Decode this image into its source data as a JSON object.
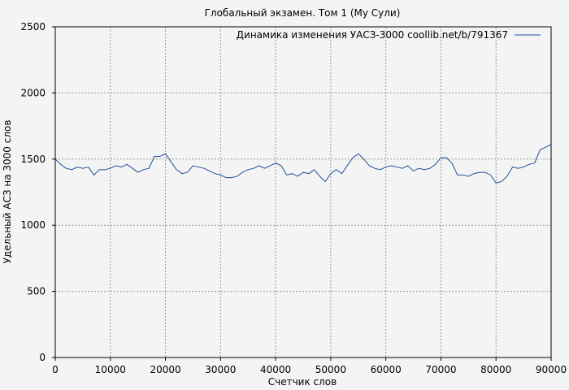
{
  "chart_data": {
    "type": "line",
    "title": "Глобальный экзамен. Том 1 (Му Сули)",
    "xlabel": "Счетчик слов",
    "ylabel": "Удельный АСЗ на 3000 слов",
    "xlim": [
      0,
      90000
    ],
    "ylim": [
      0,
      2500
    ],
    "xticks": [
      0,
      10000,
      20000,
      30000,
      40000,
      50000,
      60000,
      70000,
      80000,
      90000
    ],
    "xtick_labels": [
      "0",
      "10000",
      "20000",
      "30000",
      "40000",
      "50000",
      "60000",
      "70000",
      "80000",
      "90000"
    ],
    "yticks": [
      0,
      500,
      1000,
      1500,
      2000,
      2500
    ],
    "ytick_labels": [
      "0",
      "500",
      "1000",
      "1500",
      "2000",
      "2500"
    ],
    "grid": true,
    "legend_position": "top-right",
    "colors": {
      "line": "#1f4e96",
      "grid": "#999999",
      "background": "#f4f4f4"
    },
    "series": [
      {
        "name": "Динамика изменения УАСЗ-3000 coollib.net/b/791367",
        "x": [
          0,
          1000,
          2000,
          3000,
          4000,
          5000,
          6000,
          7000,
          8000,
          9000,
          10000,
          11000,
          12000,
          13000,
          14000,
          15000,
          16000,
          17000,
          18000,
          19000,
          20000,
          21000,
          22000,
          23000,
          24000,
          25000,
          26000,
          27000,
          28000,
          29000,
          30000,
          31000,
          32000,
          33000,
          34000,
          35000,
          36000,
          37000,
          38000,
          39000,
          40000,
          41000,
          42000,
          43000,
          44000,
          45000,
          46000,
          47000,
          48000,
          49000,
          50000,
          51000,
          52000,
          53000,
          54000,
          55000,
          56000,
          57000,
          58000,
          59000,
          60000,
          61000,
          62000,
          63000,
          64000,
          65000,
          66000,
          67000,
          68000,
          69000,
          70000,
          71000,
          72000,
          73000,
          74000,
          75000,
          76000,
          77000,
          78000,
          79000,
          80000,
          81000,
          82000,
          83000,
          84000,
          85000,
          86000,
          87000,
          88000,
          89000,
          90000
        ],
        "y": [
          1500,
          1460,
          1430,
          1420,
          1440,
          1430,
          1440,
          1380,
          1420,
          1420,
          1430,
          1450,
          1440,
          1460,
          1430,
          1400,
          1420,
          1430,
          1520,
          1520,
          1540,
          1480,
          1420,
          1390,
          1400,
          1450,
          1440,
          1430,
          1410,
          1390,
          1380,
          1360,
          1360,
          1370,
          1400,
          1420,
          1430,
          1450,
          1430,
          1450,
          1470,
          1450,
          1380,
          1390,
          1370,
          1400,
          1390,
          1420,
          1370,
          1330,
          1390,
          1420,
          1390,
          1450,
          1510,
          1540,
          1500,
          1450,
          1430,
          1420,
          1440,
          1450,
          1440,
          1430,
          1450,
          1410,
          1430,
          1420,
          1430,
          1460,
          1510,
          1510,
          1470,
          1380,
          1380,
          1370,
          1390,
          1400,
          1400,
          1380,
          1320,
          1330,
          1370,
          1440,
          1430,
          1440,
          1460,
          1470,
          1570,
          1590,
          1610
        ]
      }
    ]
  }
}
